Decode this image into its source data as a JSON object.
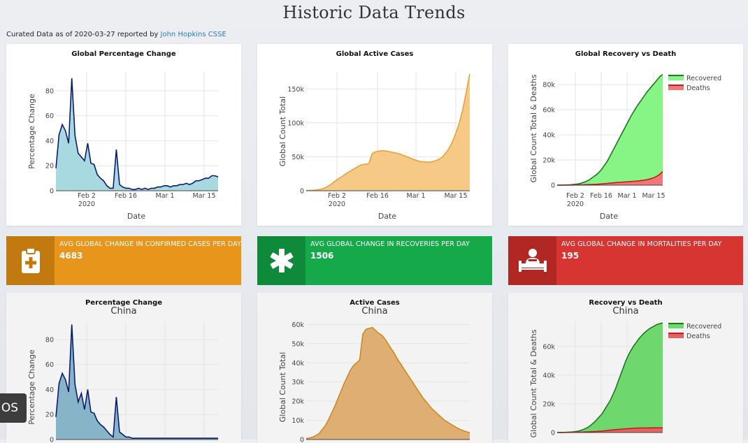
{
  "page": {
    "title": "Historic Data Trends",
    "curated_prefix": "Curated Data as of 2020-03-27 reported by",
    "curated_link": "John Hopkins CSSE"
  },
  "stats": [
    {
      "label": "AVG GLOBAL CHANGE IN CONFIRMED CASES PER DAY",
      "value": "4683",
      "color": "#e8951b",
      "dark": "#c2790f",
      "icon": "clipboard-plus-icon"
    },
    {
      "label": "AVG GLOBAL CHANGE IN RECOVERIES PER DAY",
      "value": "1506",
      "color": "#15a94a",
      "dark": "#0f8a3b",
      "icon": "asterisk-icon"
    },
    {
      "label": "AVG GLOBAL CHANGE IN MORTALITIES PER DAY",
      "value": "195",
      "color": "#d63532",
      "dark": "#b02724",
      "icon": "patient-bed-icon"
    }
  ],
  "os_badge": "OS",
  "cards": [
    {
      "title": "Global Percentage Change",
      "subtitle": ""
    },
    {
      "title": "Global Active Cases",
      "subtitle": ""
    },
    {
      "title": "Global Recovery vs Death",
      "subtitle": ""
    },
    {
      "title": "Percentage Change",
      "subtitle": "China"
    },
    {
      "title": "Active Cases",
      "subtitle": "China"
    },
    {
      "title": "Recovery vs Death",
      "subtitle": "China"
    }
  ],
  "chart_data": [
    {
      "type": "area",
      "title": "Global Percentage Change",
      "xlabel": "Date",
      "ylabel": "Percentage Change",
      "x_ticks": [
        "Feb 2\n2020",
        "Feb 16",
        "Mar 1",
        "Mar 15"
      ],
      "y_ticks": [
        0,
        20,
        40,
        60,
        80
      ],
      "ylim": [
        0,
        95
      ],
      "color": "#0a1c6e",
      "fill": "#a8d8e0",
      "series": [
        {
          "values": [
            18,
            45,
            53,
            48,
            38,
            90,
            44,
            30,
            27,
            24,
            38,
            22,
            21,
            13,
            10,
            8,
            4,
            2,
            2,
            33,
            5,
            3,
            2,
            2,
            1,
            1,
            2,
            1,
            2,
            1,
            2,
            2,
            3,
            3,
            4,
            4,
            3,
            4,
            4,
            5,
            5,
            6,
            5,
            6,
            8,
            8,
            9,
            10,
            10,
            12,
            12,
            11
          ]
        }
      ]
    },
    {
      "type": "area",
      "title": "Global Active Cases",
      "xlabel": "Date",
      "ylabel": "Global Count Total",
      "x_ticks": [
        "Feb 2\n2020",
        "Feb 16",
        "Mar 1",
        "Mar 15"
      ],
      "y_ticks": [
        "0",
        "50k",
        "100k",
        "150k"
      ],
      "ylim": [
        0,
        175000
      ],
      "color": "#e8a23a",
      "fill": "#f7c987",
      "series": [
        {
          "values": [
            500,
            600,
            800,
            1200,
            2000,
            3500,
            6000,
            9000,
            13000,
            17000,
            20000,
            23500,
            27000,
            30000,
            33000,
            36000,
            38500,
            39000,
            40000,
            55000,
            57500,
            58500,
            59000,
            58500,
            57500,
            56500,
            55500,
            54000,
            52000,
            50000,
            48000,
            46000,
            44000,
            43000,
            42500,
            42000,
            42500,
            44000,
            46000,
            49000,
            55000,
            62000,
            72000,
            85000,
            100000,
            120000,
            145000,
            172000
          ]
        }
      ]
    },
    {
      "type": "area",
      "title": "Global Recovery vs Death",
      "xlabel": "Date",
      "ylabel": "Global Count Total & Deaths",
      "x_ticks": [
        "Feb 2\n2020",
        "Feb 16",
        "Mar 1",
        "Mar 15"
      ],
      "y_ticks": [
        "0",
        "20k",
        "40k",
        "60k",
        "80k"
      ],
      "ylim": [
        0,
        90000
      ],
      "legend": "top-right",
      "series": [
        {
          "name": "Recovered",
          "color": "#1a7a1a",
          "fill": "#86f586",
          "values": [
            30,
            60,
            100,
            150,
            250,
            350,
            500,
            700,
            1000,
            1500,
            2200,
            3000,
            4000,
            5500,
            7000,
            8500,
            10500,
            13000,
            16000,
            19000,
            23000,
            27000,
            31000,
            35000,
            39000,
            43000,
            47000,
            51000,
            55000,
            58500,
            62000,
            65000,
            68000,
            71000,
            74000,
            76500,
            79000,
            81500,
            84000,
            86500,
            88000
          ]
        },
        {
          "name": "Deaths",
          "color": "#c81818",
          "fill": "#f07878",
          "values": [
            20,
            30,
            45,
            60,
            80,
            100,
            130,
            170,
            220,
            280,
            350,
            420,
            500,
            580,
            660,
            750,
            900,
            1000,
            1200,
            1400,
            1600,
            1800,
            2000,
            2150,
            2300,
            2450,
            2600,
            2750,
            2900,
            3050,
            3200,
            3400,
            3700,
            4000,
            4400,
            4900,
            5500,
            6300,
            7400,
            8800,
            11000
          ]
        }
      ]
    },
    {
      "type": "area",
      "title": "Percentage Change",
      "subtitle": "China",
      "xlabel": "",
      "ylabel": "Percentage Change",
      "y_ticks": [
        0,
        20,
        40,
        60,
        80
      ],
      "ylim": [
        0,
        95
      ],
      "color": "#0a1c6e",
      "fill": "#88b4c8",
      "series": [
        {
          "values": [
            18,
            45,
            53,
            48,
            38,
            92,
            44,
            30,
            37,
            24,
            40,
            22,
            21,
            15,
            12,
            10,
            7,
            4,
            2,
            34,
            6,
            4,
            2,
            2,
            1,
            1,
            1,
            1,
            1,
            1,
            1,
            1,
            1,
            1,
            1,
            1,
            1,
            1,
            1,
            1,
            1,
            1,
            1,
            1,
            1,
            1,
            1,
            1,
            1,
            1,
            1,
            1
          ]
        }
      ]
    },
    {
      "type": "area",
      "title": "Active Cases",
      "subtitle": "China",
      "xlabel": "",
      "ylabel": "Global Count Total",
      "y_ticks": [
        "0",
        "10k",
        "20k",
        "30k",
        "40k",
        "50k",
        "60k"
      ],
      "ylim": [
        0,
        62000
      ],
      "color": "#cc8a22",
      "fill": "#dfae72",
      "series": [
        {
          "values": [
            500,
            800,
            1200,
            2000,
            3000,
            5000,
            7000,
            10000,
            13500,
            17000,
            21000,
            25000,
            29000,
            32500,
            36000,
            38500,
            40000,
            41500,
            55000,
            57500,
            58000,
            58500,
            57000,
            55500,
            54500,
            52500,
            50000,
            47500,
            45000,
            42000,
            39500,
            37000,
            34500,
            32000,
            29500,
            27000,
            24500,
            22000,
            20000,
            18000,
            16000,
            14500,
            13000,
            11500,
            10000,
            9000,
            8000,
            7000,
            6000,
            5200,
            4600,
            4000,
            3600
          ]
        }
      ]
    },
    {
      "type": "area",
      "title": "Recovery vs Death",
      "subtitle": "China",
      "xlabel": "",
      "ylabel": "Global Count Total & Deaths",
      "y_ticks": [
        "0",
        "20k",
        "40k",
        "60k"
      ],
      "ylim": [
        0,
        78000
      ],
      "legend": "top-right",
      "series": [
        {
          "name": "Recovered",
          "color": "#1a7a1a",
          "fill": "#6ed86e",
          "values": [
            30,
            60,
            100,
            150,
            250,
            350,
            500,
            700,
            1000,
            1500,
            2200,
            3000,
            4000,
            5500,
            7000,
            9000,
            11000,
            13000,
            16000,
            19000,
            22000,
            26000,
            30000,
            35000,
            40000,
            45000,
            50000,
            54000,
            57500,
            60500,
            63000,
            65500,
            67500,
            69500,
            71000,
            72500,
            73500,
            74500,
            75500,
            76000,
            76500
          ]
        },
        {
          "name": "Deaths",
          "color": "#c81818",
          "fill": "#e06464",
          "values": [
            20,
            30,
            45,
            60,
            80,
            100,
            130,
            170,
            220,
            280,
            350,
            420,
            500,
            580,
            660,
            750,
            900,
            1000,
            1200,
            1400,
            1600,
            1800,
            2000,
            2150,
            2300,
            2450,
            2600,
            2750,
            2850,
            2950,
            3050,
            3100,
            3150,
            3200,
            3220,
            3240,
            3260,
            3270,
            3280,
            3290,
            3300
          ]
        }
      ]
    }
  ]
}
